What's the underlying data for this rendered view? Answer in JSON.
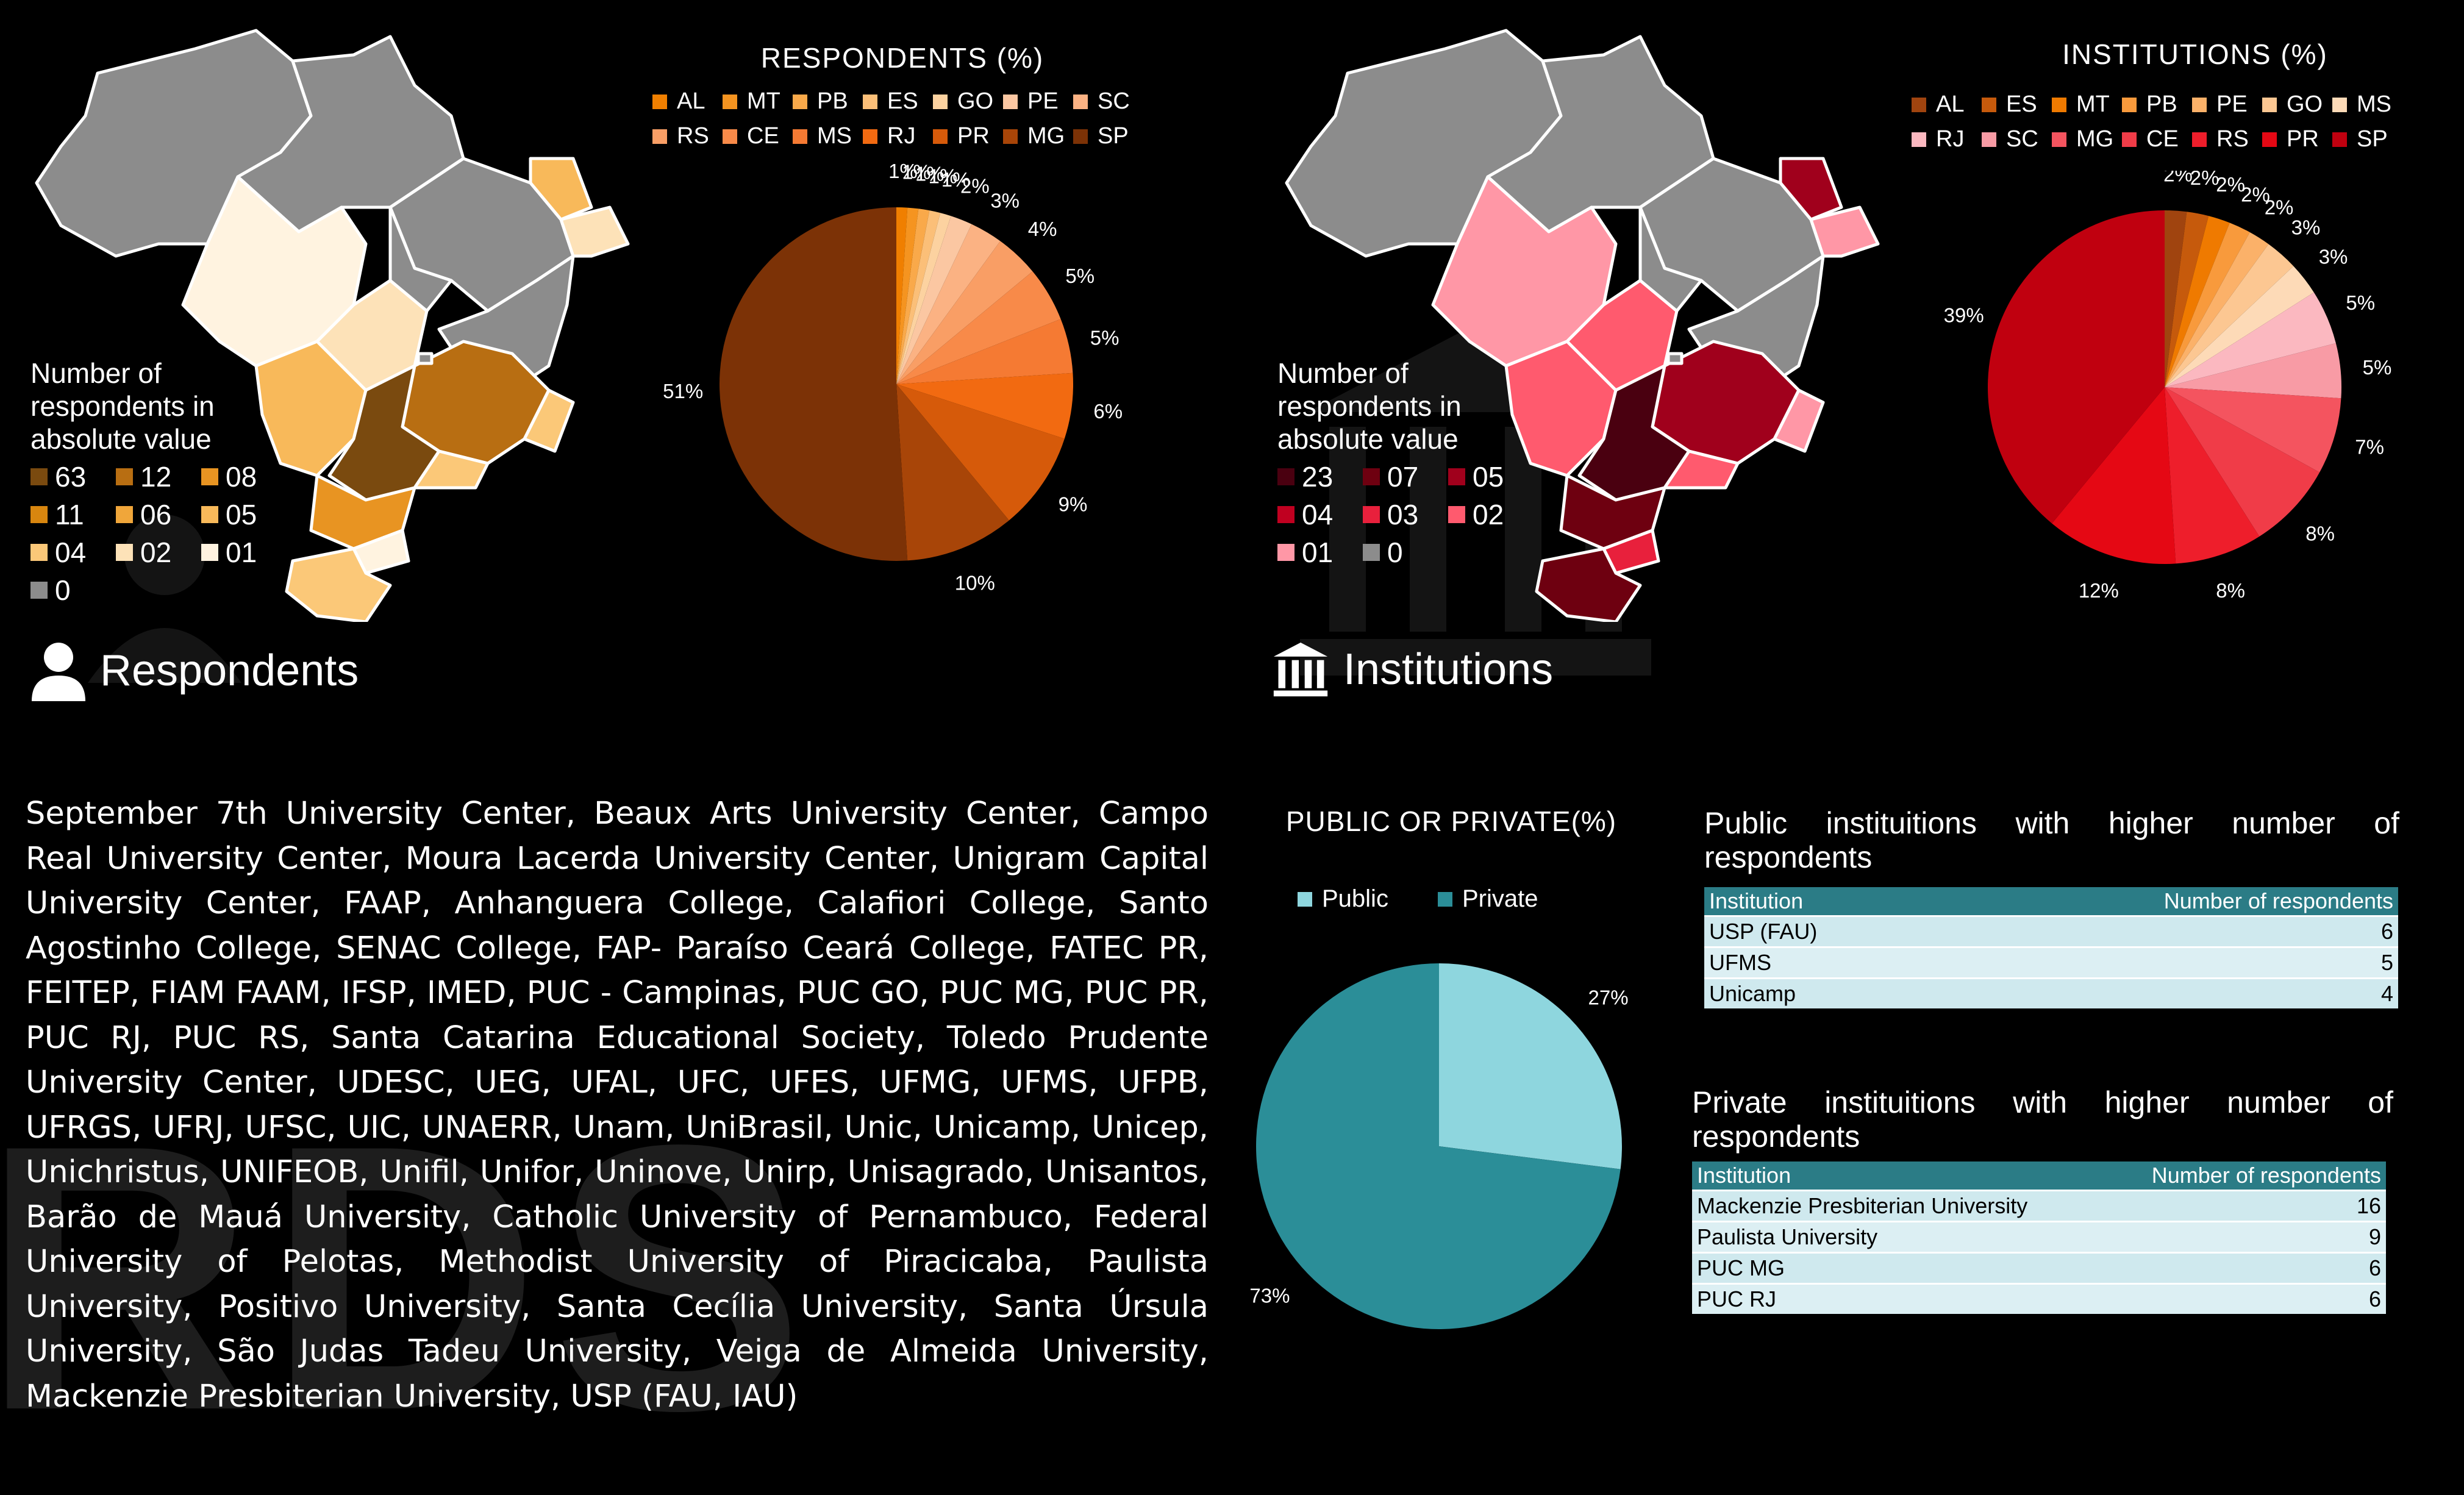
{
  "respondents": {
    "title": "Respondents",
    "chart_title": "RESPONDENTS (%)",
    "map_legend_title": "Number of respondents in absolute value",
    "map_legend": [
      {
        "label": "63",
        "color": "#7a4a0f"
      },
      {
        "label": "12",
        "color": "#b86e12"
      },
      {
        "label": "08",
        "color": "#e89422"
      },
      {
        "label": "11",
        "color": "#d8860f"
      },
      {
        "label": "06",
        "color": "#f0a63a"
      },
      {
        "label": "05",
        "color": "#f8b95a"
      },
      {
        "label": "04",
        "color": "#fbc878"
      },
      {
        "label": "02",
        "color": "#fde2b8"
      },
      {
        "label": "01",
        "color": "#fff3e0"
      },
      {
        "label": "0",
        "color": "#8c8c8c"
      }
    ]
  },
  "institutions": {
    "title": "Institutions",
    "chart_title": "INSTITUTIONS (%)",
    "map_legend_title": "Number of respondents in absolute value",
    "map_legend": [
      {
        "label": "23",
        "color": "#4a0010"
      },
      {
        "label": "07",
        "color": "#6e0010"
      },
      {
        "label": "05",
        "color": "#a0001c"
      },
      {
        "label": "04",
        "color": "#c00020"
      },
      {
        "label": "03",
        "color": "#e8203c"
      },
      {
        "label": "02",
        "color": "#ff5a6e"
      },
      {
        "label": "01",
        "color": "#ff97a6"
      },
      {
        "label": "0",
        "color": "#8c8c8c"
      }
    ]
  },
  "institution_list": "September 7th University Center, Beaux Arts University Center, Campo Real University Center, Moura Lacerda University Center, Unigram Capital University Center, FAAP, Anhanguera College, Calafiori College, Santo Agostinho College, SENAC College, FAP- Paraíso Ceará College, FATEC PR, FEITEP, FIAM FAAM, IFSP, IMED, PUC - Campinas, PUC GO, PUC MG, PUC PR, PUC RJ, PUC RS, Santa Catarina Educational Society, Toledo Prudente University Center, UDESC, UEG, UFAL, UFC, UFES, UFMG, UFMS, UFPB, UFRGS, UFRJ, UFSC, UIC, UNAERR, Unam, UniBrasil, Unic, Unicamp, Unicep, Unichristus, UNIFEOB, Unifil, Unifor, Uninove, Unirp, Unisagrado, Unisantos, Barão de Mauá University, Catholic University of Pernambuco, Federal University of Pelotas, Methodist University of Piracicaba, Paulista University, Positivo University, Santa Cecília University, Santa Úrsula University, São Judas Tadeu University, Veiga de Almeida University, Mackenzie Presbiterian University, USP (FAU, IAU)",
  "public_table": {
    "title": "Public instituitions with higher number of respondents",
    "headers": [
      "Institution",
      "Number of respondents"
    ],
    "rows": [
      [
        "USP (FAU)",
        "6"
      ],
      [
        "UFMS",
        "5"
      ],
      [
        "Unicamp",
        "4"
      ]
    ]
  },
  "private_table": {
    "title": "Private instituitions with higher number of respondents",
    "headers": [
      "Institution",
      "Number of respondents"
    ],
    "rows": [
      [
        "Mackenzie Presbiterian University",
        "16"
      ],
      [
        "Paulista University",
        "9"
      ],
      [
        "PUC MG",
        "6"
      ],
      [
        "PUC RJ",
        "6"
      ]
    ]
  },
  "watermark": "RDS",
  "chart_data": [
    {
      "type": "pie",
      "title": "RESPONDENTS (%)",
      "categories": [
        "AL",
        "MT",
        "PB",
        "ES",
        "GO",
        "PE",
        "SC",
        "RS",
        "CE",
        "MS",
        "RJ",
        "PR",
        "MG",
        "SP"
      ],
      "values": [
        1,
        1,
        1,
        1,
        1,
        2,
        3,
        4,
        5,
        5,
        6,
        9,
        10,
        51
      ],
      "labels": [
        "1%",
        "1%",
        "1%",
        "1%",
        "1%",
        "2%",
        "3%",
        "4%",
        "5%",
        "5%",
        "6%",
        "9%",
        "10%",
        "51%"
      ],
      "colors": [
        "#f07f00",
        "#f59420",
        "#f9a94a",
        "#fbbf78",
        "#fcd2a0",
        "#fbc7a2",
        "#fbb283",
        "#f99e65",
        "#f88a49",
        "#f57a33",
        "#f26a11",
        "#d65a0a",
        "#a84508",
        "#7c3206"
      ],
      "legend": "top"
    },
    {
      "type": "pie",
      "title": "INSTITUTIONS (%)",
      "categories": [
        "AL",
        "ES",
        "MT",
        "PB",
        "PE",
        "GO",
        "MS",
        "RJ",
        "SC",
        "MG",
        "CE",
        "RS",
        "PR",
        "SP"
      ],
      "values": [
        2,
        2,
        2,
        2,
        2,
        3,
        3,
        5,
        5,
        7,
        8,
        8,
        12,
        39
      ],
      "labels": [
        "2%",
        "2%",
        "2%",
        "2%",
        "2%",
        "3%",
        "3%",
        "5%",
        "5%",
        "7%",
        "8%",
        "8%",
        "12%",
        "39%"
      ],
      "colors": [
        "#a0440f",
        "#c65a0c",
        "#ef7a00",
        "#f89a3c",
        "#fbb169",
        "#fcc792",
        "#fddab7",
        "#fbb8c0",
        "#f89ba5",
        "#f4545f",
        "#f03c48",
        "#ee1e2b",
        "#e50814",
        "#c0000f"
      ],
      "legend": "top"
    },
    {
      "type": "pie",
      "title": "PUBLIC OR PRIVATE(%)",
      "categories": [
        "Public",
        "Private"
      ],
      "values": [
        27,
        73
      ],
      "labels": [
        "27%",
        "73%"
      ],
      "colors": [
        "#8ed6de",
        "#2b8e98"
      ],
      "legend": "top"
    }
  ]
}
